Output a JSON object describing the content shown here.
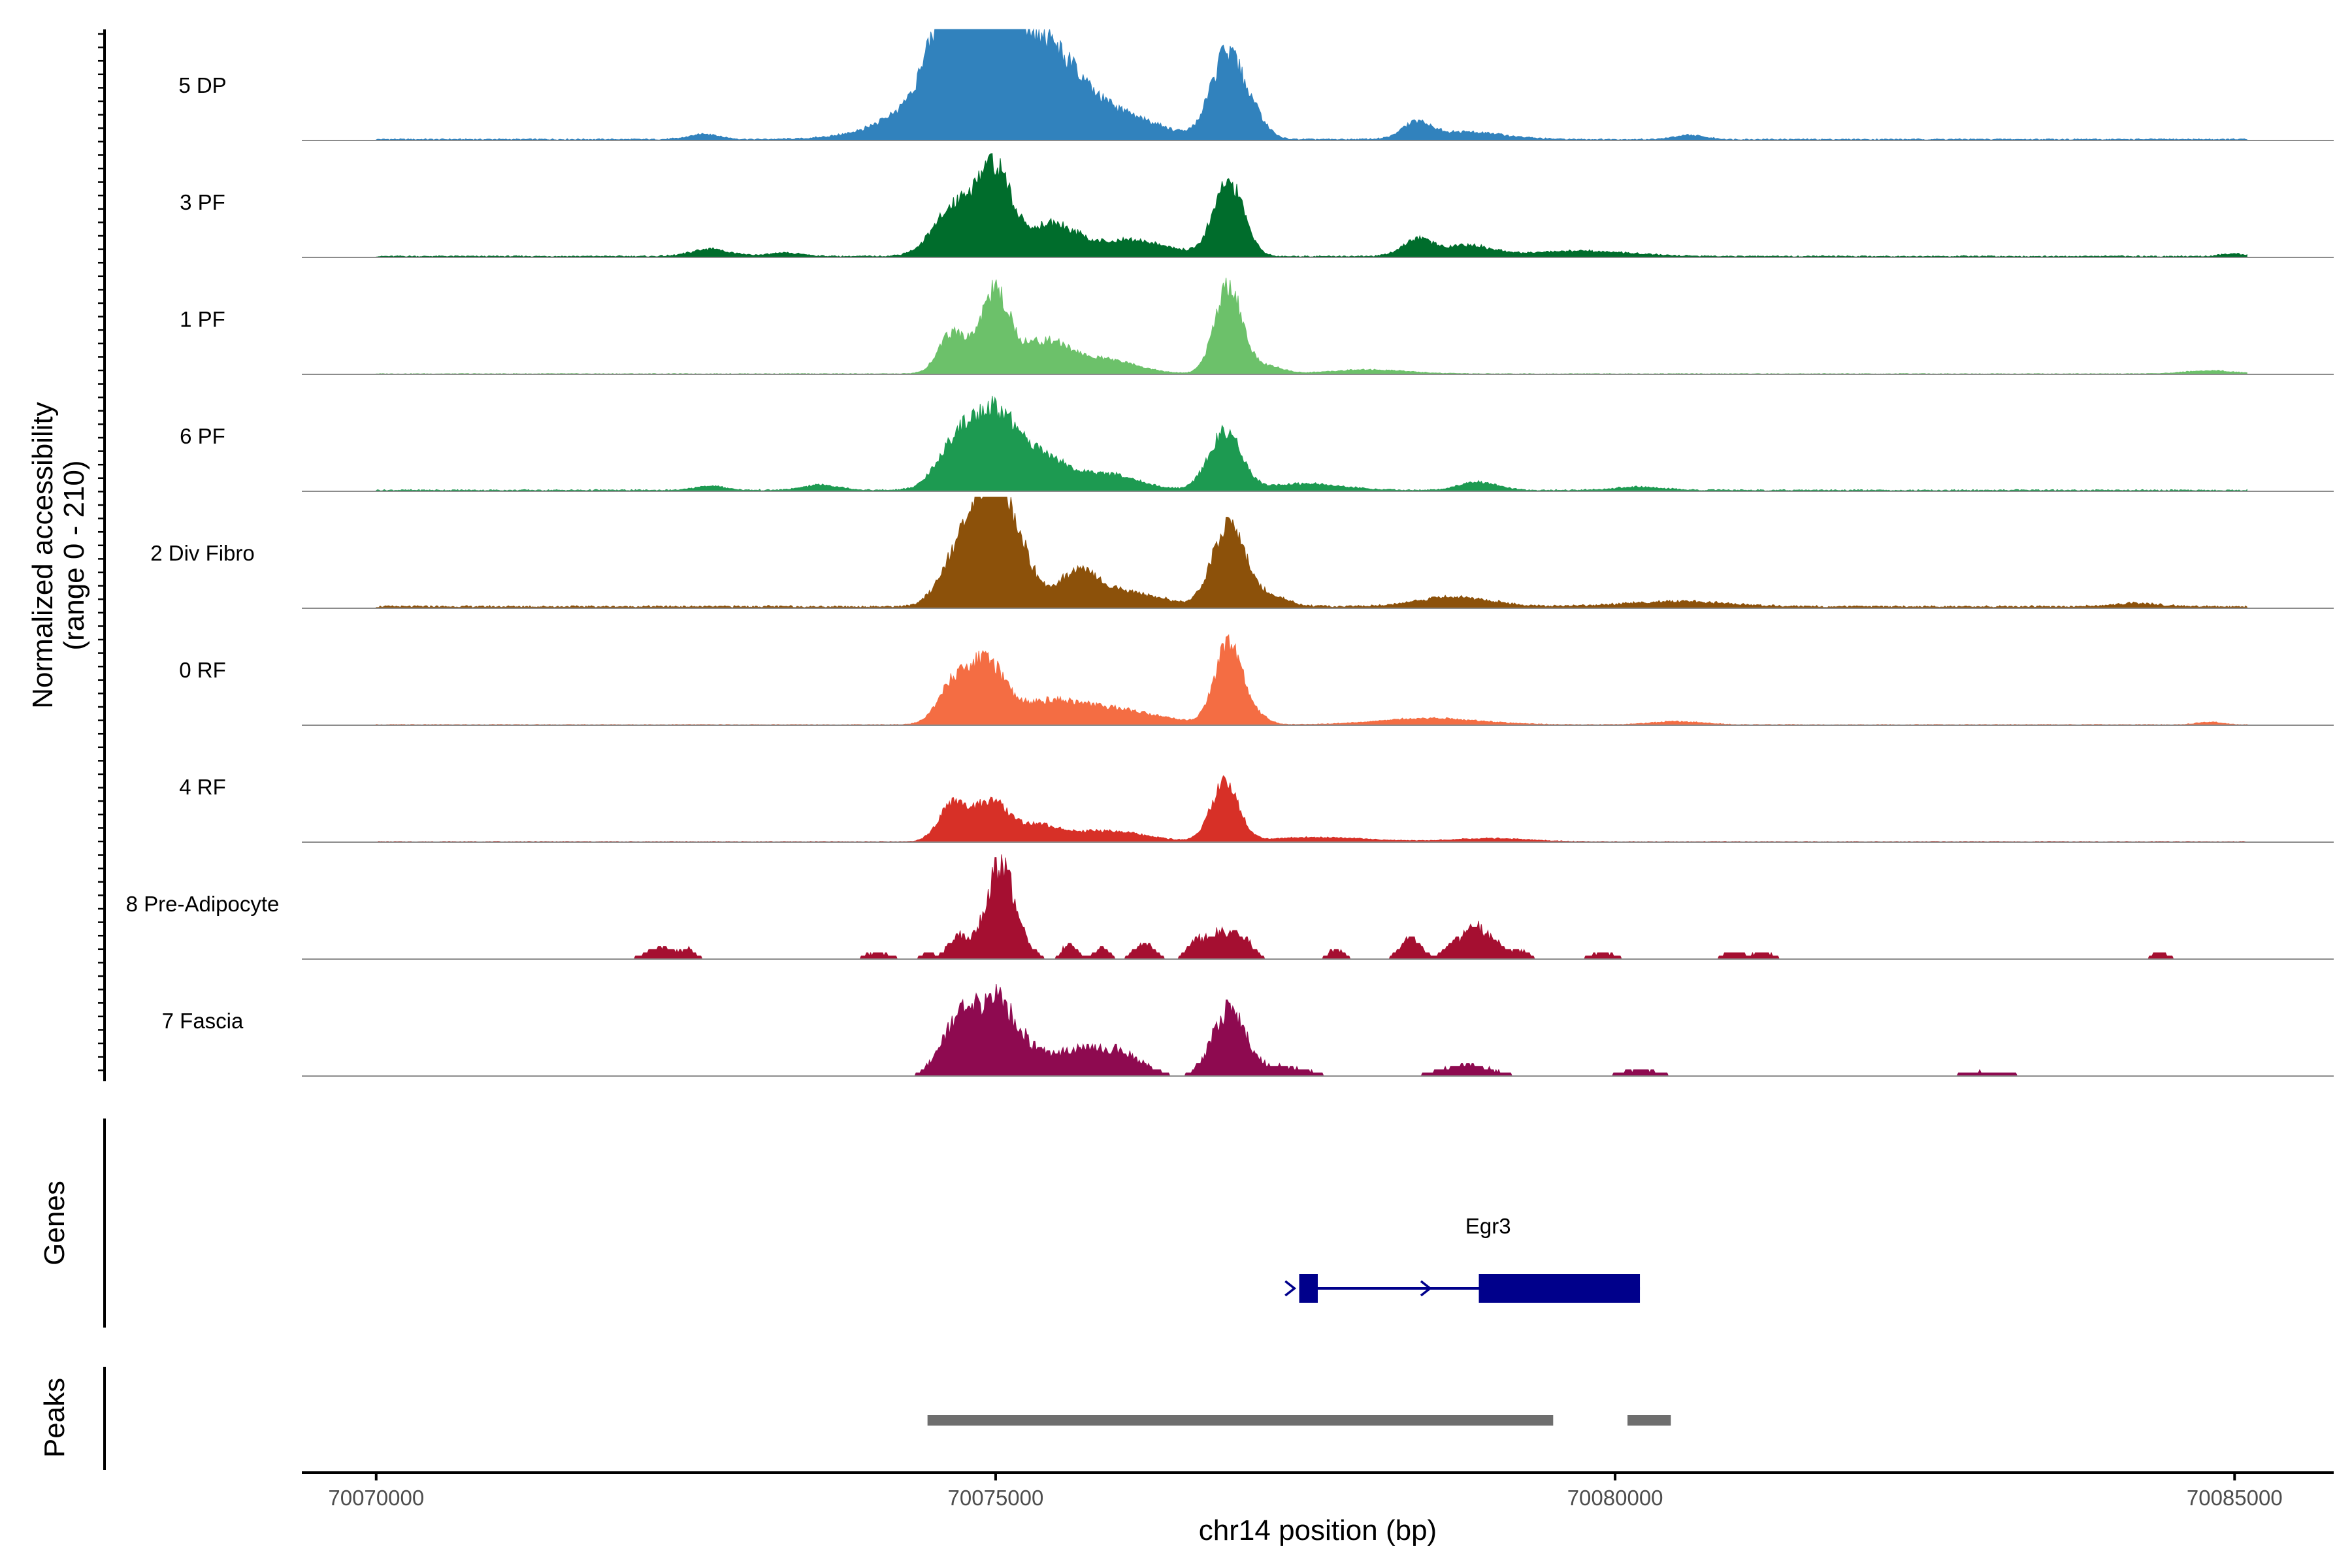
{
  "chart_data": {
    "type": "area",
    "title": "",
    "xlabel": "chr14 position (bp)",
    "ylabel_line1": "Normalized accessibility",
    "ylabel_line2": "(range 0 - 210)",
    "y_range": [
      0,
      210
    ],
    "x_range": [
      70069400,
      70085800
    ],
    "x_ticks": [
      70070000,
      70075000,
      70080000,
      70085000
    ],
    "x_tick_labels": [
      "70070000",
      "70075000",
      "70080000",
      "70085000"
    ],
    "region_start": 70070000,
    "region_end": 70085100,
    "tracks": [
      {
        "name": "5 DP",
        "color": "#3182bd",
        "style": "smooth",
        "baseline": 2,
        "bumps": [
          [
            70072650,
            120,
            10
          ],
          [
            70074950,
            500,
            160
          ],
          [
            70074640,
            160,
            145
          ],
          [
            70075000,
            130,
            150
          ],
          [
            70075400,
            250,
            80
          ],
          [
            70076000,
            350,
            35
          ],
          [
            70076870,
            130,
            160
          ],
          [
            70077100,
            100,
            30
          ],
          [
            70078400,
            110,
            30
          ],
          [
            70078800,
            300,
            14
          ],
          [
            70080600,
            120,
            8
          ]
        ]
      },
      {
        "name": "3 PF",
        "color": "#006d2c",
        "style": "smooth",
        "baseline": 2,
        "bumps": [
          [
            70072700,
            150,
            14
          ],
          [
            70073300,
            150,
            6
          ],
          [
            70074700,
            180,
            100
          ],
          [
            70075000,
            130,
            145
          ],
          [
            70075450,
            200,
            60
          ],
          [
            70076100,
            300,
            30
          ],
          [
            70076880,
            120,
            140
          ],
          [
            70078400,
            120,
            30
          ],
          [
            70078800,
            200,
            20
          ],
          [
            70079700,
            400,
            10
          ],
          [
            70085000,
            100,
            5
          ]
        ]
      },
      {
        "name": "1 PF",
        "color": "#6cc16a",
        "style": "smooth",
        "baseline": 1,
        "bumps": [
          [
            70074650,
            110,
            75
          ],
          [
            70074990,
            120,
            150
          ],
          [
            70075400,
            200,
            60
          ],
          [
            70075900,
            250,
            25
          ],
          [
            70076880,
            110,
            165
          ],
          [
            70077200,
            120,
            14
          ],
          [
            70078000,
            300,
            8
          ],
          [
            70084800,
            200,
            6
          ]
        ]
      },
      {
        "name": "6 PF",
        "color": "#1d9a51",
        "style": "smooth",
        "baseline": 2,
        "bumps": [
          [
            70072700,
            120,
            8
          ],
          [
            70073600,
            150,
            10
          ],
          [
            70074700,
            160,
            95
          ],
          [
            70075000,
            160,
            125
          ],
          [
            70075350,
            200,
            65
          ],
          [
            70075900,
            250,
            30
          ],
          [
            70076850,
            130,
            110
          ],
          [
            70077500,
            300,
            12
          ],
          [
            70078900,
            150,
            15
          ],
          [
            70080200,
            200,
            6
          ]
        ]
      },
      {
        "name": "2 Div Fibro",
        "color": "#8c510a",
        "style": "smooth",
        "baseline": 3,
        "bumps": [
          [
            70074720,
            150,
            115
          ],
          [
            70074960,
            120,
            180
          ],
          [
            70075150,
            140,
            120
          ],
          [
            70075650,
            150,
            55
          ],
          [
            70076000,
            300,
            30
          ],
          [
            70076880,
            130,
            155
          ],
          [
            70077200,
            150,
            20
          ],
          [
            70078700,
            300,
            18
          ],
          [
            70080500,
            400,
            10
          ],
          [
            70084200,
            200,
            6
          ]
        ]
      },
      {
        "name": "0 RF",
        "color": "#f46d43",
        "style": "smooth",
        "baseline": 1,
        "bumps": [
          [
            70074650,
            120,
            70
          ],
          [
            70074920,
            140,
            110
          ],
          [
            70075400,
            300,
            40
          ],
          [
            70076000,
            350,
            25
          ],
          [
            70076880,
            110,
            150
          ],
          [
            70077100,
            100,
            14
          ],
          [
            70078500,
            400,
            12
          ],
          [
            70080500,
            200,
            6
          ],
          [
            70084800,
            100,
            5
          ]
        ]
      },
      {
        "name": "4 RF",
        "color": "#d73027",
        "style": "smooth",
        "baseline": 1,
        "bumps": [
          [
            70074650,
            110,
            70
          ],
          [
            70074950,
            130,
            70
          ],
          [
            70075300,
            200,
            30
          ],
          [
            70075900,
            300,
            20
          ],
          [
            70076850,
            110,
            110
          ],
          [
            70077600,
            400,
            8
          ],
          [
            70079000,
            300,
            6
          ]
        ]
      },
      {
        "name": "8 Pre-Adipocyte",
        "color": "#a50f31",
        "style": "blocky",
        "baseline": 0,
        "bumps": [
          [
            70072300,
            120,
            22
          ],
          [
            70072530,
            60,
            14
          ],
          [
            70074050,
            100,
            12
          ],
          [
            70074450,
            50,
            12
          ],
          [
            70074690,
            80,
            42
          ],
          [
            70074950,
            100,
            78
          ],
          [
            70075060,
            80,
            125
          ],
          [
            70075200,
            90,
            38
          ],
          [
            70075600,
            60,
            28
          ],
          [
            70075860,
            60,
            20
          ],
          [
            70076200,
            80,
            30
          ],
          [
            70076600,
            60,
            22
          ],
          [
            70076800,
            120,
            50
          ],
          [
            70077000,
            80,
            30
          ],
          [
            70077750,
            60,
            18
          ],
          [
            70078350,
            80,
            40
          ],
          [
            70078700,
            80,
            30
          ],
          [
            70078880,
            80,
            55
          ],
          [
            70079050,
            80,
            25
          ],
          [
            70079250,
            60,
            15
          ],
          [
            70079900,
            100,
            12
          ],
          [
            70080950,
            80,
            12
          ],
          [
            70081200,
            80,
            12
          ],
          [
            70084400,
            70,
            12
          ]
        ]
      },
      {
        "name": "7 Fascia",
        "color": "#8e0a50",
        "style": "blocky",
        "baseline": 3,
        "bumps": [
          [
            70074680,
            130,
            100
          ],
          [
            70074980,
            140,
            130
          ],
          [
            70075250,
            180,
            50
          ],
          [
            70075650,
            160,
            40
          ],
          [
            70076000,
            180,
            45
          ],
          [
            70076880,
            130,
            125
          ],
          [
            70077300,
            200,
            18
          ],
          [
            70078800,
            200,
            20
          ],
          [
            70080200,
            150,
            12
          ],
          [
            70083000,
            200,
            8
          ]
        ]
      }
    ],
    "genes_label": "Genes",
    "gene": {
      "name": "Egr3",
      "start": 70077450,
      "end": 70080200,
      "strand": "+",
      "exons": [
        [
          70077450,
          70077600
        ],
        [
          70078900,
          70080200
        ]
      ],
      "color": "#00008b"
    },
    "peaks_label": "Peaks",
    "peaks": [
      [
        70074450,
        70079500
      ],
      [
        70080100,
        70080450
      ]
    ],
    "peak_color": "#6e6e6e"
  }
}
